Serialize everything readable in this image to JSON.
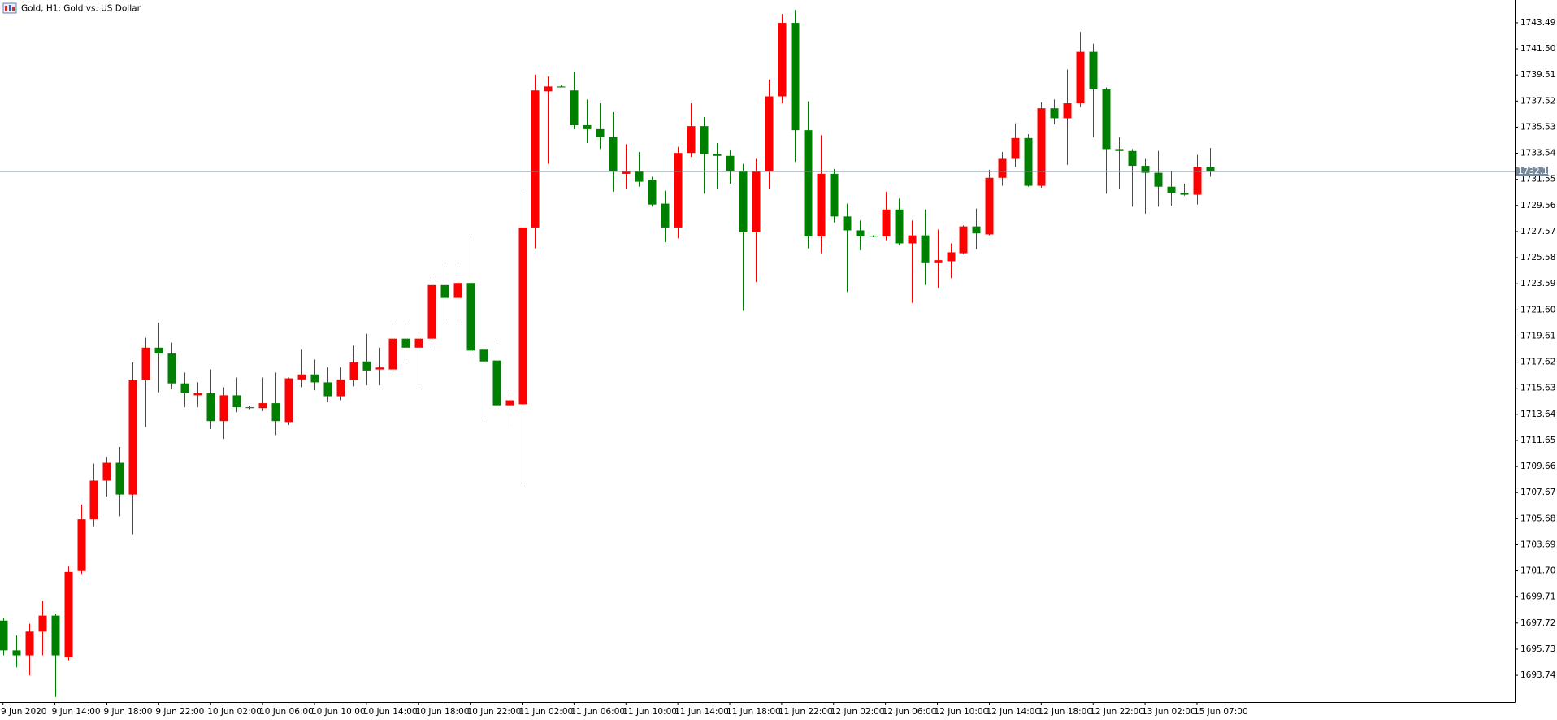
{
  "chart_data": {
    "type": "candlestick",
    "title": "Gold, H1:  Gold vs. US Dollar",
    "up_color": "#ff0000",
    "down_color": "#008000",
    "current_price": 1732.15,
    "current_price_color": "#778899",
    "categories": [
      "9 Jun 2020",
      null,
      null,
      null,
      "9 Jun 14:00",
      null,
      null,
      null,
      "9 Jun 18:00",
      null,
      null,
      null,
      "9 Jun 22:00",
      null,
      null,
      null,
      "10 Jun 02:00",
      null,
      null,
      null,
      "10 Jun 06:00",
      null,
      null,
      null,
      "10 Jun 10:00",
      null,
      null,
      null,
      "10 Jun 14:00",
      null,
      null,
      null,
      "10 Jun 18:00",
      null,
      null,
      null,
      "10 Jun 22:00",
      null,
      null,
      null,
      "11 Jun 02:00",
      null,
      null,
      null,
      "11 Jun 06:00",
      null,
      null,
      null,
      "11 Jun 10:00",
      null,
      null,
      null,
      "11 Jun 14:00",
      null,
      null,
      null,
      "11 Jun 18:00",
      null,
      null,
      null,
      "11 Jun 22:00",
      null,
      null,
      null,
      "12 Jun 02:00",
      null,
      null,
      null,
      "12 Jun 06:00",
      null,
      null,
      null,
      "12 Jun 10:00",
      null,
      null,
      null,
      "12 Jun 14:00",
      null,
      null,
      null,
      "12 Jun 18:00",
      null,
      null,
      null,
      "12 Jun 22:00",
      null,
      null,
      null,
      "13 Jun 02:00",
      null,
      null,
      null,
      "15 Jun 07:00",
      null
    ],
    "open": [
      1697.91,
      1695.64,
      1695.26,
      1697.07,
      1698.29,
      1695.11,
      1701.69,
      1705.63,
      1708.58,
      1709.94,
      1707.52,
      1716.23,
      1718.72,
      1718.27,
      1716.0,
      1715.09,
      1715.24,
      1713.12,
      1715.09,
      1714.18,
      1714.11,
      1714.49,
      1713.05,
      1716.3,
      1716.68,
      1716.08,
      1715.02,
      1716.23,
      1717.67,
      1717.06,
      1717.06,
      1719.41,
      1718.72,
      1719.41,
      1723.49,
      1722.51,
      1723.65,
      1718.57,
      1717.74,
      1714.33,
      1714.41,
      1727.88,
      1738.26,
      1738.63,
      1738.33,
      1735.68,
      1735.38,
      1734.77,
      1731.97,
      1732.12,
      1731.52,
      1729.7,
      1727.88,
      1733.56,
      1735.61,
      1733.49,
      1733.34,
      1732.2,
      1727.51,
      1732.12,
      1737.88,
      1743.48,
      1735.3,
      1727.2,
      1731.97,
      1728.72,
      1727.66,
      1727.24,
      1727.2,
      1729.25,
      1726.67,
      1727.28,
      1725.16,
      1725.31,
      1725.92,
      1727.96,
      1727.35,
      1731.67,
      1733.11,
      1734.7,
      1731.06,
      1736.97,
      1736.21,
      1737.35,
      1741.28,
      1738.41,
      1733.86,
      1733.71,
      1732.58,
      1732.05,
      1730.99,
      1730.53,
      1730.38,
      1732.5
    ],
    "high": [
      1698.13,
      1696.77,
      1697.68,
      1699.42,
      1698.44,
      1702.07,
      1706.76,
      1709.87,
      1710.4,
      1711.15,
      1717.59,
      1719.48,
      1720.62,
      1719.1,
      1716.83,
      1716.08,
      1717.06,
      1715.7,
      1716.45,
      1714.26,
      1716.45,
      1716.83,
      1716.45,
      1718.57,
      1717.82,
      1717.21,
      1717.21,
      1718.88,
      1719.78,
      1718.72,
      1720.62,
      1720.62,
      1719.86,
      1724.33,
      1724.93,
      1724.93,
      1726.98,
      1718.88,
      1719.1,
      1715.09,
      1730.61,
      1739.54,
      1739.39,
      1738.71,
      1739.77,
      1737.65,
      1737.35,
      1736.67,
      1734.24,
      1733.64,
      1731.75,
      1730.69,
      1734.02,
      1737.35,
      1736.29,
      1734.32,
      1733.79,
      1732.73,
      1733.11,
      1739.16,
      1744.16,
      1744.46,
      1737.5,
      1734.92,
      1732.35,
      1729.7,
      1728.41,
      1727.28,
      1730.61,
      1730.08,
      1728.41,
      1729.25,
      1727.73,
      1726.67,
      1728.04,
      1729.32,
      1732.28,
      1733.64,
      1735.83,
      1735.0,
      1737.42,
      1737.65,
      1739.92,
      1742.8,
      1741.89,
      1738.56,
      1734.77,
      1733.86,
      1733.11,
      1733.71,
      1732.2,
      1731.22,
      1733.41,
      1733.94
    ],
    "low": [
      1695.26,
      1694.35,
      1693.74,
      1695.26,
      1692.08,
      1694.88,
      1701.47,
      1705.1,
      1707.37,
      1705.86,
      1704.49,
      1712.67,
      1715.32,
      1715.55,
      1714.18,
      1714.18,
      1712.52,
      1711.76,
      1713.8,
      1714.03,
      1713.88,
      1712.06,
      1712.82,
      1715.7,
      1715.47,
      1714.56,
      1714.71,
      1715.77,
      1715.85,
      1715.85,
      1716.83,
      1717.59,
      1715.85,
      1718.88,
      1720.77,
      1720.62,
      1718.27,
      1713.27,
      1714.03,
      1712.52,
      1708.13,
      1726.29,
      1732.73,
      1738.56,
      1735.38,
      1734.32,
      1733.86,
      1730.61,
      1730.84,
      1730.99,
      1729.47,
      1726.75,
      1727.05,
      1733.26,
      1730.46,
      1730.84,
      1731.22,
      1721.53,
      1723.72,
      1730.84,
      1737.35,
      1732.88,
      1726.29,
      1725.92,
      1728.26,
      1722.96,
      1726.14,
      1727.13,
      1726.9,
      1726.52,
      1722.13,
      1723.49,
      1723.27,
      1724.02,
      1725.84,
      1726.22,
      1727.28,
      1731.06,
      1732.5,
      1730.99,
      1730.91,
      1735.76,
      1732.65,
      1737.04,
      1734.77,
      1730.46,
      1730.84,
      1729.47,
      1728.94,
      1729.47,
      1729.55,
      1730.31,
      1729.63,
      1731.75
    ],
    "close": [
      1695.64,
      1695.26,
      1697.07,
      1698.29,
      1695.26,
      1701.62,
      1705.63,
      1708.58,
      1709.94,
      1707.52,
      1716.23,
      1718.72,
      1718.27,
      1716.0,
      1715.24,
      1715.24,
      1713.12,
      1715.09,
      1714.18,
      1714.11,
      1714.49,
      1713.12,
      1716.38,
      1716.68,
      1716.08,
      1715.02,
      1716.3,
      1717.59,
      1716.98,
      1717.21,
      1719.41,
      1718.72,
      1719.41,
      1723.49,
      1722.51,
      1723.65,
      1718.5,
      1717.67,
      1714.33,
      1714.71,
      1727.88,
      1738.33,
      1738.63,
      1738.56,
      1735.68,
      1735.38,
      1734.77,
      1732.12,
      1732.12,
      1731.37,
      1729.63,
      1727.88,
      1733.56,
      1735.61,
      1733.49,
      1733.34,
      1732.2,
      1727.51,
      1732.12,
      1737.88,
      1743.48,
      1735.3,
      1727.2,
      1731.97,
      1728.72,
      1727.66,
      1727.2,
      1727.2,
      1729.25,
      1726.67,
      1727.28,
      1725.16,
      1725.39,
      1725.99,
      1727.96,
      1727.43,
      1731.67,
      1733.11,
      1734.7,
      1731.06,
      1736.97,
      1736.21,
      1737.35,
      1741.28,
      1738.41,
      1733.86,
      1733.71,
      1732.58,
      1732.05,
      1730.99,
      1730.53,
      1730.38,
      1732.5,
      1732.15
    ],
    "ylim": [
      1691.7,
      1745.22
    ],
    "yticks": [
      1693.74,
      1695.73,
      1697.72,
      1699.71,
      {
        "value": 1701.7,
        "label": "1701.70"
      },
      1703.69,
      1705.68,
      1707.67,
      1709.66,
      1711.65,
      1713.64,
      1715.63,
      1717.62,
      1719.61,
      {
        "value": 1721.6,
        "label": "1721.60"
      },
      1723.59,
      1725.58,
      1727.57,
      1729.56,
      1731.55,
      1733.54,
      1735.53,
      1737.52,
      1739.51,
      {
        "value": 1741.5,
        "label": "1741.50"
      },
      1743.49
    ],
    "grid": false
  }
}
